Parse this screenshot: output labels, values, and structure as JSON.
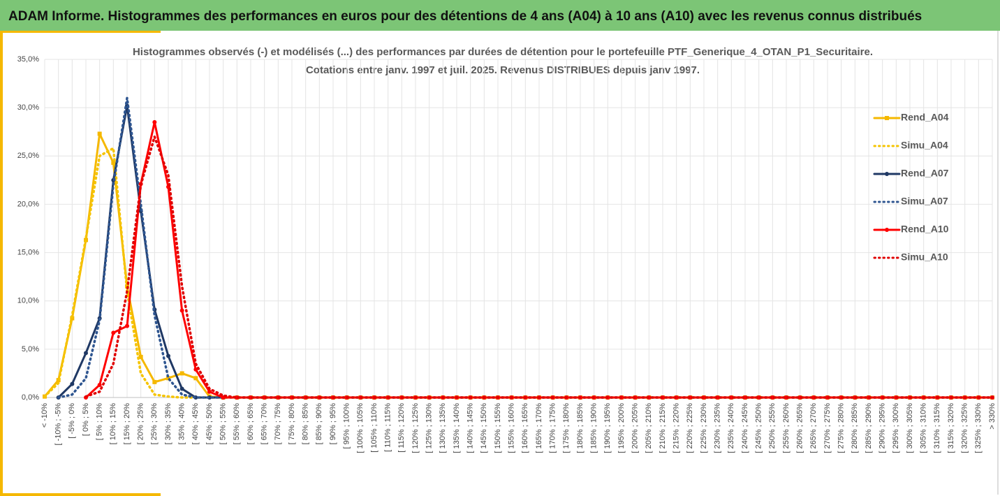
{
  "header": {
    "title": "ADAM Informe. Histogrammes des performances en euros pour des détentions de 4 ans (A04) à 10 ans (A10) avec les revenus connus distribués"
  },
  "chart_data": {
    "type": "line",
    "title": "Histogrammes observés (-) et modélisés (...) des performances par durées de détention pour le portefeuille PTF_Generique_4_OTAN_P1_Securitaire.",
    "subtitle": "Cotations entre janv. 1997 et juil. 2025. Revenus DISTRIBUES depuis janv 1997.",
    "categories": [
      "< -10%",
      "[ -10% ; -5%",
      "[ -5% ; 0%",
      "[ 0% ; 5%",
      "[ 5% ; 10%",
      "[ 10% ; 15%",
      "[ 15% ; 20%",
      "[ 20% ; 25%",
      "[ 25% ; 30%",
      "[ 30% ; 35%",
      "[ 35% ; 40%",
      "[ 40% ; 45%",
      "[ 45% ; 50%",
      "[ 50% ; 55%",
      "[ 55% ; 60%",
      "[ 60% ; 65%",
      "[ 65% ; 70%",
      "[ 70% ; 75%",
      "[ 75% ; 80%",
      "[ 80% ; 85%",
      "[ 85% ; 90%",
      "[ 90% ; 95%",
      "[ 95% ; 100%",
      "[ 100% ; 105%",
      "[ 105% ; 110%",
      "[ 110% ; 115%",
      "[ 115% ; 120%",
      "[ 120% ; 125%",
      "[ 125% ; 130%",
      "[ 130% ; 135%",
      "[ 135% ; 140%",
      "[ 140% ; 145%",
      "[ 145% ; 150%",
      "[ 150% ; 155%",
      "[ 155% ; 160%",
      "[ 160% ; 165%",
      "[ 165% ; 170%",
      "[ 170% ; 175%",
      "[ 175% ; 180%",
      "[ 180% ; 185%",
      "[ 185% ; 190%",
      "[ 190% ; 195%",
      "[ 195% ; 200%",
      "[ 200% ; 205%",
      "[ 205% ; 210%",
      "[ 210% ; 215%",
      "[ 215% ; 220%",
      "[ 220% ; 225%",
      "[ 225% ; 230%",
      "[ 230% ; 235%",
      "[ 235% ; 240%",
      "[ 240% ; 245%",
      "[ 245% ; 250%",
      "[ 250% ; 255%",
      "[ 255% ; 260%",
      "[ 260% ; 265%",
      "[ 265% ; 270%",
      "[ 270% ; 275%",
      "[ 275% ; 280%",
      "[ 280% ; 285%",
      "[ 285% ; 290%",
      "[ 290% ; 295%",
      "[ 295% ; 300%",
      "[ 300% ; 305%",
      "[ 305% ; 310%",
      "[ 310% ; 315%",
      "[ 315% ; 320%",
      "[ 320% ; 325%",
      "[ 325% ; 330%",
      "> 330%"
    ],
    "series": [
      {
        "name": "Rend_A04",
        "color": "#f5b800",
        "dash": false,
        "marker": "square",
        "values": [
          0.1,
          1.8,
          8.2,
          16.3,
          27.3,
          24.3,
          11.5,
          4.2,
          1.6,
          2.0,
          2.5,
          2.0,
          0.1,
          0,
          0,
          0,
          0,
          0,
          0,
          0,
          0,
          0,
          0,
          0,
          0,
          0,
          0,
          0,
          0,
          0,
          0,
          0,
          0,
          0,
          0,
          0,
          0,
          0,
          0,
          0,
          0,
          0,
          0,
          0,
          0,
          0,
          0,
          0,
          0,
          0,
          0,
          0,
          0,
          0,
          0,
          0,
          0,
          0,
          0,
          0,
          0,
          0,
          0,
          0,
          0,
          0,
          0,
          0,
          0,
          0
        ]
      },
      {
        "name": "Simu_A04",
        "color": "#f5c400",
        "dash": true,
        "marker": "none",
        "values": [
          0.1,
          1.5,
          8.5,
          16.5,
          25,
          25.8,
          11,
          2.5,
          0.3,
          0.1,
          0,
          0,
          0,
          0,
          0,
          0,
          0,
          0,
          0,
          0,
          0,
          0,
          0,
          0,
          0,
          0,
          0,
          0,
          0,
          0,
          0,
          0,
          0,
          0,
          0,
          0,
          0,
          0,
          0,
          0,
          0,
          0,
          0,
          0,
          0,
          0,
          0,
          0,
          0,
          0,
          0,
          0,
          0,
          0,
          0,
          0,
          0,
          0,
          0,
          0,
          0,
          0,
          0,
          0,
          0,
          0,
          0,
          0,
          0,
          0
        ]
      },
      {
        "name": "Rend_A07",
        "color": "#1f3864",
        "dash": false,
        "marker": "circle",
        "values": [
          null,
          0,
          1.4,
          4.6,
          8.2,
          22.5,
          30.2,
          19.3,
          9.1,
          4.3,
          0.9,
          0,
          0,
          0,
          0,
          0,
          0,
          0,
          0,
          0,
          0,
          0,
          0,
          0,
          0,
          0,
          0,
          0,
          0,
          0,
          0,
          0,
          0,
          0,
          0,
          0,
          0,
          0,
          0,
          0,
          0,
          0,
          0,
          0,
          0,
          0,
          0,
          0,
          0,
          0,
          0,
          0,
          0,
          0,
          0,
          0,
          0,
          0,
          0,
          0,
          0,
          0,
          0,
          0,
          0,
          0,
          0,
          0,
          0,
          0
        ]
      },
      {
        "name": "Simu_A07",
        "color": "#2e5590",
        "dash": true,
        "marker": "none",
        "values": [
          null,
          0,
          0.3,
          2,
          8,
          22,
          31,
          20,
          8.5,
          2,
          0.3,
          0,
          0,
          0,
          0,
          0,
          0,
          0,
          0,
          0,
          0,
          0,
          0,
          0,
          0,
          0,
          0,
          0,
          0,
          0,
          0,
          0,
          0,
          0,
          0,
          0,
          0,
          0,
          0,
          0,
          0,
          0,
          0,
          0,
          0,
          0,
          0,
          0,
          0,
          0,
          0,
          0,
          0,
          0,
          0,
          0,
          0,
          0,
          0,
          0,
          0,
          0,
          0,
          0,
          0,
          0,
          0,
          0,
          0,
          0
        ]
      },
      {
        "name": "Rend_A10",
        "color": "#ff0000",
        "dash": false,
        "marker": "circle",
        "values": [
          null,
          null,
          null,
          0,
          1.3,
          6.7,
          7.4,
          22.1,
          28.5,
          21.8,
          9.0,
          2.9,
          0.6,
          0,
          0,
          0,
          0,
          0,
          0,
          0,
          0,
          0,
          0,
          0,
          0,
          0,
          0,
          0,
          0,
          0,
          0,
          0,
          0,
          0,
          0,
          0,
          0,
          0,
          0,
          0,
          0,
          0,
          0,
          0,
          0,
          0,
          0,
          0,
          0,
          0,
          0,
          0,
          0,
          0,
          0,
          0,
          0,
          0,
          0,
          0,
          0,
          0,
          0,
          0,
          0,
          0,
          0,
          0,
          0,
          0
        ]
      },
      {
        "name": "Simu_A10",
        "color": "#e00000",
        "dash": true,
        "marker": "none",
        "values": [
          null,
          null,
          null,
          0.1,
          0.6,
          3.5,
          11,
          22,
          27,
          23,
          11.5,
          3.5,
          0.9,
          0.2,
          0,
          0,
          0,
          0,
          0,
          0,
          0,
          0,
          0,
          0,
          0,
          0,
          0,
          0,
          0,
          0,
          0,
          0,
          0,
          0,
          0,
          0,
          0,
          0,
          0,
          0,
          0,
          0,
          0,
          0,
          0,
          0,
          0,
          0,
          0,
          0,
          0,
          0,
          0,
          0,
          0,
          0,
          0,
          0,
          0,
          0,
          0,
          0,
          0,
          0,
          0,
          0,
          0,
          0,
          0,
          0
        ]
      }
    ],
    "ylim": [
      0,
      35
    ],
    "yticks": [
      {
        "value": 0,
        "label": "0,0%"
      },
      {
        "value": 5,
        "label": "5,0%"
      },
      {
        "value": 10,
        "label": "10,0%"
      },
      {
        "value": 15,
        "label": "15,0%"
      },
      {
        "value": 20,
        "label": "20,0%"
      },
      {
        "value": 25,
        "label": "25,0%"
      },
      {
        "value": 30,
        "label": "30,0%"
      },
      {
        "value": 35,
        "label": "35,0%"
      }
    ],
    "grid": true,
    "legend": "right"
  }
}
